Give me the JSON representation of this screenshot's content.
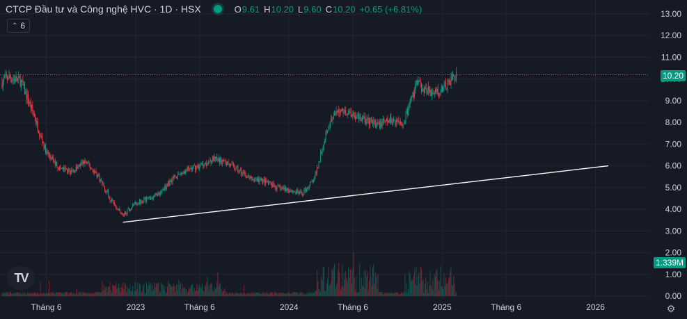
{
  "header": {
    "title": "CTCP Đầu tư và Công nghệ HVC · 1D · HSX",
    "o_label": "O",
    "o_value": "9.61",
    "h_label": "H",
    "h_value": "10.20",
    "l_label": "L",
    "l_value": "9.60",
    "c_label": "C",
    "c_value": "10.20",
    "change": "+0.65 (+6.81%)"
  },
  "volume_toggle": {
    "label": "6"
  },
  "logo": {
    "text": "TV"
  },
  "colors": {
    "up": "#089981",
    "down": "#f23645",
    "background": "#161a25",
    "grid": "#232632",
    "text": "#d1d4dc",
    "line": "#ffffff"
  },
  "price_tag": "10.20",
  "volume_tag": "1.339M",
  "icons": {
    "settings": "gear-icon",
    "toggle": "chevron-up-icon",
    "logo": "tradingview-logo"
  },
  "chart_data": {
    "type": "candlestick",
    "title": "CTCP Đầu tư và Công nghệ HVC · 1D · HSX",
    "y_ticks": [
      "0.00",
      "1.00",
      "2.00",
      "3.00",
      "4.00",
      "5.00",
      "6.00",
      "7.00",
      "8.00",
      "9.00",
      "10.00",
      "11.00",
      "12.00",
      "13.00"
    ],
    "ylim": [
      0,
      13
    ],
    "x_ticks": [
      "Tháng 6",
      "2023",
      "Tháng 6",
      "2024",
      "Tháng 6",
      "2025",
      "Tháng 6",
      "2026"
    ],
    "last_close": 10.2,
    "price_path": [
      [
        "2022-02",
        9.6
      ],
      [
        "2022-03",
        10.1
      ],
      [
        "2022-04",
        9.9
      ],
      [
        "2022-05",
        8.4
      ],
      [
        "2022-06",
        6.6
      ],
      [
        "2022-07",
        5.9
      ],
      [
        "2022-08",
        5.7
      ],
      [
        "2022-09",
        6.2
      ],
      [
        "2022-10",
        5.6
      ],
      [
        "2022-11",
        4.5
      ],
      [
        "2022-12",
        3.7
      ],
      [
        "2023-01",
        4.3
      ],
      [
        "2023-02",
        4.5
      ],
      [
        "2023-03",
        4.8
      ],
      [
        "2023-04",
        5.5
      ],
      [
        "2023-05",
        5.8
      ],
      [
        "2023-06",
        6.0
      ],
      [
        "2023-07",
        6.3
      ],
      [
        "2023-08",
        6.2
      ],
      [
        "2023-09",
        5.8
      ],
      [
        "2023-10",
        5.4
      ],
      [
        "2023-11",
        5.3
      ],
      [
        "2023-12",
        5.0
      ],
      [
        "2024-01",
        4.9
      ],
      [
        "2024-02",
        4.7
      ],
      [
        "2024-03",
        5.4
      ],
      [
        "2024-04",
        7.8
      ],
      [
        "2024-05",
        8.6
      ],
      [
        "2024-06",
        8.4
      ],
      [
        "2024-07",
        8.1
      ],
      [
        "2024-08",
        7.9
      ],
      [
        "2024-09",
        8.1
      ],
      [
        "2024-10",
        8.0
      ],
      [
        "2024-11",
        9.8
      ],
      [
        "2024-12",
        9.4
      ],
      [
        "2025-01",
        9.5
      ],
      [
        "2025-02",
        10.2
      ]
    ],
    "trendline": {
      "from": [
        "2022-12",
        3.4
      ],
      "to": [
        "2026-02",
        6.0
      ]
    },
    "volume_axis": "M"
  }
}
